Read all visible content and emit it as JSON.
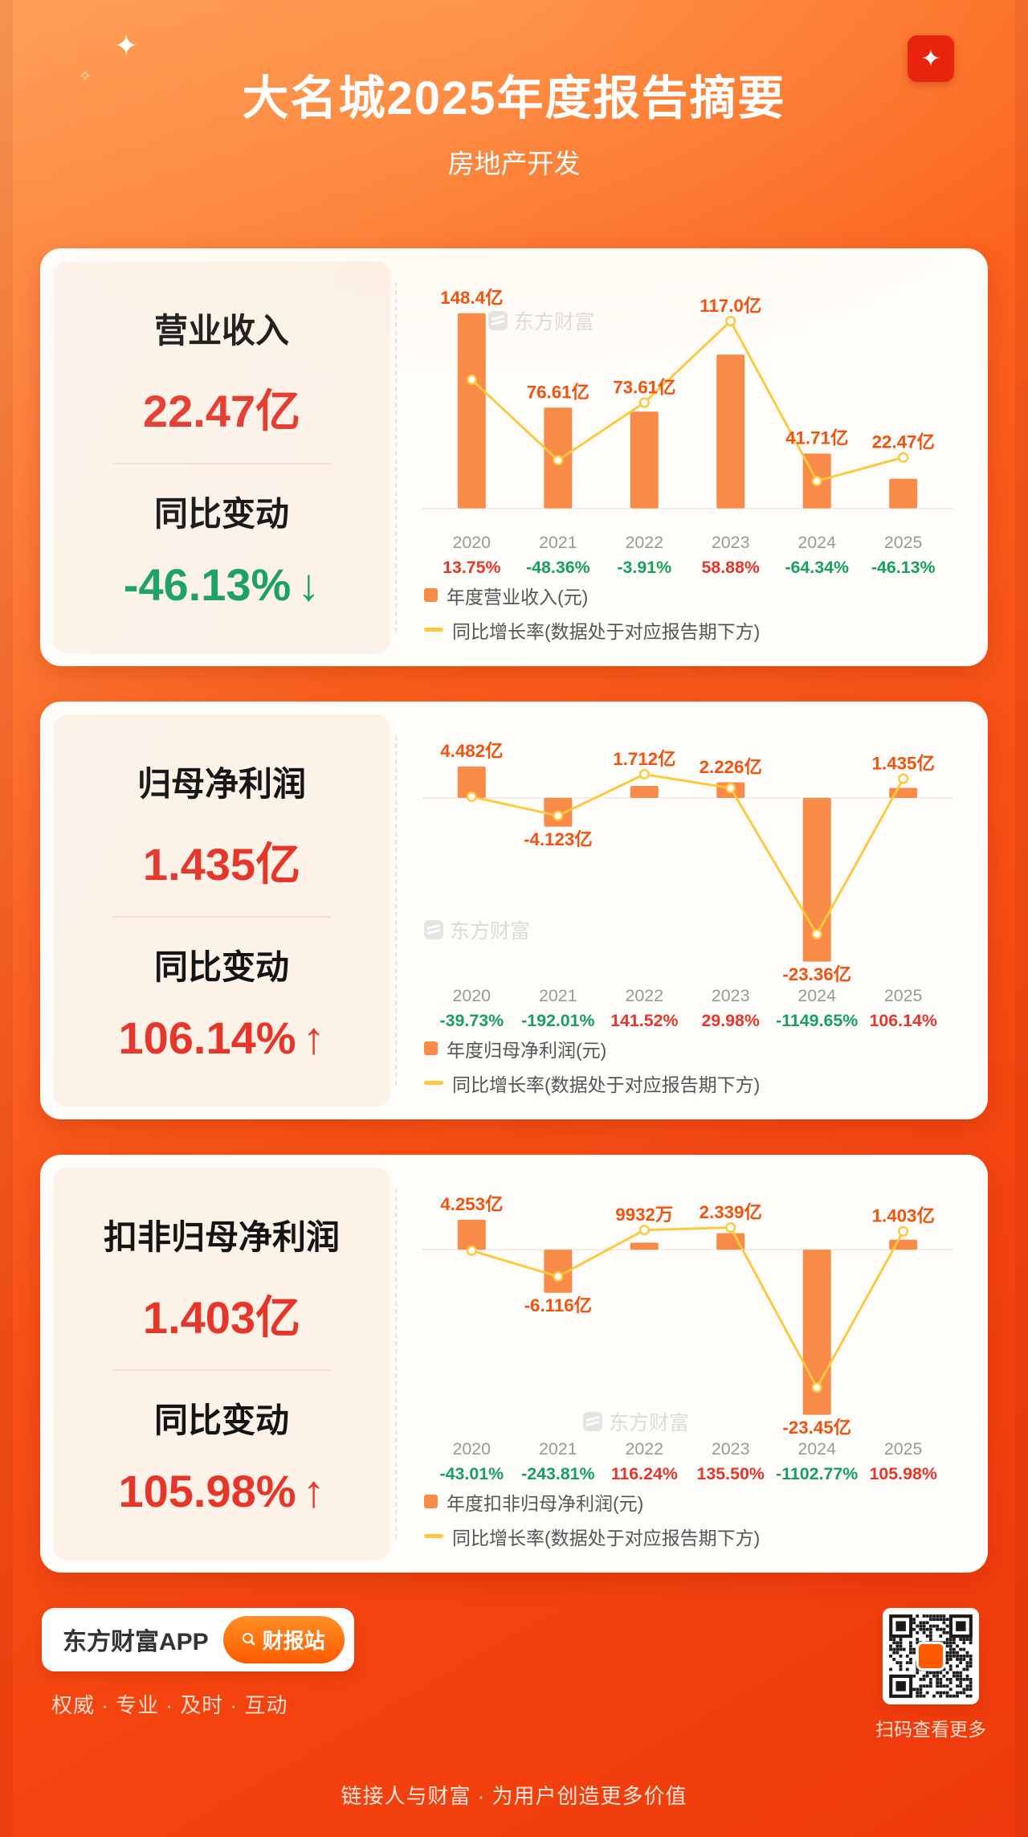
{
  "page": {
    "title": "大名城2025年度报告摘要",
    "subtitle": "房地产开发",
    "tagline": "链接人与财富 · 为用户创造更多价值"
  },
  "footer": {
    "app_name": "东方财富APP",
    "report_button": "财报站",
    "slogan": "权威 · 专业 · 及时 · 互动",
    "qr_caption": "扫码查看更多"
  },
  "colors": {
    "background_top": "#FF8D3A",
    "background_bottom": "#EE3A0C",
    "card": "#FFFDFA",
    "panel": "#FCF2E8",
    "bar": "#F78B47",
    "line": "#FFC83C",
    "bar_label": "#F3520E",
    "up_red": "#E6362A",
    "down_green": "#16A05D",
    "year_label": "#999999"
  },
  "sections": [
    {
      "metric_label": "营业收入",
      "metric_value": "22.47亿",
      "change_label": "同比变动",
      "change_value": "-46.13%",
      "change_arrow": "↓",
      "change_direction": "down",
      "watermark": "东方财富",
      "legend_bar": "年度营业收入(元)",
      "legend_line": "同比增长率(数据处于对应报告期下方)"
    },
    {
      "metric_label": "归母净利润",
      "metric_value": "1.435亿",
      "change_label": "同比变动",
      "change_value": "106.14%",
      "change_arrow": "↑",
      "change_direction": "up",
      "watermark": "东方财富",
      "legend_bar": "年度归母净利润(元)",
      "legend_line": "同比增长率(数据处于对应报告期下方)"
    },
    {
      "metric_label": "扣非归母净利润",
      "metric_value": "1.403亿",
      "change_label": "同比变动",
      "change_value": "105.98%",
      "change_arrow": "↑",
      "change_direction": "up",
      "watermark": "东方财富",
      "legend_bar": "年度扣非归母净利润(元)",
      "legend_line": "同比增长率(数据处于对应报告期下方)"
    }
  ],
  "chart_data": [
    {
      "type": "bar+line",
      "title": "营业收入",
      "categories": [
        "2020",
        "2021",
        "2022",
        "2023",
        "2024",
        "2025"
      ],
      "series": [
        {
          "name": "年度营业收入(元)",
          "type": "bar",
          "unit": "亿",
          "values": [
            148.4,
            76.61,
            73.61,
            117.0,
            41.71,
            22.47
          ],
          "labels": [
            "148.4亿",
            "76.61亿",
            "73.61亿",
            "117.0亿",
            "41.71亿",
            "22.47亿"
          ]
        },
        {
          "name": "同比增长率(数据处于对应报告期下方)",
          "type": "line",
          "unit": "%",
          "values": [
            13.75,
            -48.36,
            -3.91,
            58.88,
            -64.34,
            -46.13
          ],
          "labels": [
            "13.75%",
            "-48.36%",
            "-3.91%",
            "58.88%",
            "-64.34%",
            "-46.13%"
          ]
        }
      ],
      "legend_position": "bottom"
    },
    {
      "type": "bar+line",
      "title": "归母净利润",
      "categories": [
        "2020",
        "2021",
        "2022",
        "2023",
        "2024",
        "2025"
      ],
      "series": [
        {
          "name": "年度归母净利润(元)",
          "type": "bar",
          "unit": "亿",
          "values": [
            4.482,
            -4.123,
            1.712,
            2.226,
            -23.36,
            1.435
          ],
          "labels": [
            "4.482亿",
            "-4.123亿",
            "1.712亿",
            "2.226亿",
            "-23.36亿",
            "1.435亿"
          ]
        },
        {
          "name": "同比增长率(数据处于对应报告期下方)",
          "type": "line",
          "unit": "%",
          "values": [
            -39.73,
            -192.01,
            141.52,
            29.98,
            -1149.65,
            106.14
          ],
          "labels": [
            "-39.73%",
            "-192.01%",
            "141.52%",
            "29.98%",
            "-1149.65%",
            "106.14%"
          ]
        }
      ],
      "legend_position": "bottom"
    },
    {
      "type": "bar+line",
      "title": "扣非归母净利润",
      "categories": [
        "2020",
        "2021",
        "2022",
        "2023",
        "2024",
        "2025"
      ],
      "series": [
        {
          "name": "年度扣非归母净利润(元)",
          "type": "bar",
          "unit": "亿",
          "values": [
            4.253,
            -6.116,
            0.9932,
            2.339,
            -23.45,
            1.403
          ],
          "labels": [
            "4.253亿",
            "-6.116亿",
            "9932万",
            "2.339亿",
            "-23.45亿",
            "1.403亿"
          ]
        },
        {
          "name": "同比增长率(数据处于对应报告期下方)",
          "type": "line",
          "unit": "%",
          "values": [
            -43.01,
            -243.81,
            116.24,
            135.5,
            -1102.77,
            105.98
          ],
          "labels": [
            "-43.01%",
            "-243.81%",
            "116.24%",
            "135.50%",
            "-1102.77%",
            "105.98%"
          ]
        }
      ],
      "legend_position": "bottom"
    }
  ]
}
